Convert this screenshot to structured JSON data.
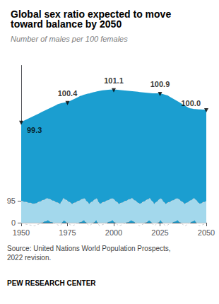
{
  "chart_data": {
    "type": "area",
    "title": "Global sex ratio expected to move\ntoward balance by 2050",
    "subtitle": "Number of males per 100 females",
    "x": [
      1950,
      1951,
      1952,
      1953,
      1954,
      1955,
      1956,
      1957,
      1958,
      1959,
      1960,
      1961,
      1962,
      1963,
      1964,
      1965,
      1966,
      1967,
      1968,
      1969,
      1970,
      1971,
      1972,
      1973,
      1974,
      1975,
      1976,
      1977,
      1978,
      1979,
      1980,
      1981,
      1982,
      1983,
      1984,
      1985,
      1986,
      1987,
      1988,
      1989,
      1990,
      1991,
      1992,
      1993,
      1994,
      1995,
      1996,
      1997,
      1998,
      1999,
      2000,
      2001,
      2002,
      2003,
      2004,
      2005,
      2006,
      2007,
      2008,
      2009,
      2010,
      2011,
      2012,
      2013,
      2014,
      2015,
      2016,
      2017,
      2018,
      2019,
      2020,
      2021,
      2022,
      2023,
      2024,
      2025,
      2026,
      2027,
      2028,
      2029,
      2030,
      2031,
      2032,
      2033,
      2034,
      2035,
      2036,
      2037,
      2038,
      2039,
      2040,
      2041,
      2042,
      2043,
      2044,
      2045,
      2046,
      2047,
      2048,
      2049,
      2050
    ],
    "values": [
      99.3,
      99.35,
      99.4,
      99.45,
      99.5,
      99.55,
      99.6,
      99.65,
      99.7,
      99.75,
      99.8,
      99.85,
      99.9,
      99.95,
      100.0,
      100.05,
      100.1,
      100.15,
      100.2,
      100.25,
      100.3,
      100.33,
      100.36,
      100.38,
      100.4,
      100.4,
      100.45,
      100.5,
      100.55,
      100.6,
      100.65,
      100.7,
      100.75,
      100.78,
      100.82,
      100.85,
      100.88,
      100.9,
      100.93,
      100.96,
      100.98,
      101.0,
      101.02,
      101.04,
      101.06,
      101.07,
      101.08,
      101.09,
      101.1,
      101.1,
      101.1,
      101.1,
      101.09,
      101.08,
      101.07,
      101.06,
      101.05,
      101.04,
      101.03,
      101.02,
      101.01,
      101.0,
      100.99,
      100.98,
      100.97,
      100.96,
      100.95,
      100.94,
      100.93,
      100.92,
      100.91,
      100.9,
      100.9,
      100.9,
      100.9,
      100.9,
      100.87,
      100.84,
      100.81,
      100.78,
      100.72,
      100.66,
      100.6,
      100.54,
      100.48,
      100.42,
      100.36,
      100.3,
      100.24,
      100.18,
      100.12,
      100.08,
      100.06,
      100.04,
      100.03,
      100.02,
      100.01,
      100.01,
      100.0,
      100.0,
      100.0
    ],
    "color": "#1B9ED0",
    "xlim": [
      1950,
      2050
    ],
    "xticks": [
      1950,
      1975,
      2000,
      2025,
      2050
    ],
    "ylim": [
      0,
      102.5
    ],
    "yticks": [
      0,
      95
    ],
    "grid": false,
    "annotations": [
      {
        "x": 1950,
        "y": 99.3,
        "text": "99.3"
      },
      {
        "x": 1975,
        "y": 100.4,
        "text": "100.4"
      },
      {
        "x": 2000,
        "y": 101.1,
        "text": "101.1"
      },
      {
        "x": 2025,
        "y": 100.9,
        "text": "100.9"
      },
      {
        "x": 2050,
        "y": 100.0,
        "text": "100.0"
      }
    ],
    "source": "Source: United Nations World Population Prospects,\n2022 revision.",
    "footer": "PEW RESEARCH CENTER"
  }
}
